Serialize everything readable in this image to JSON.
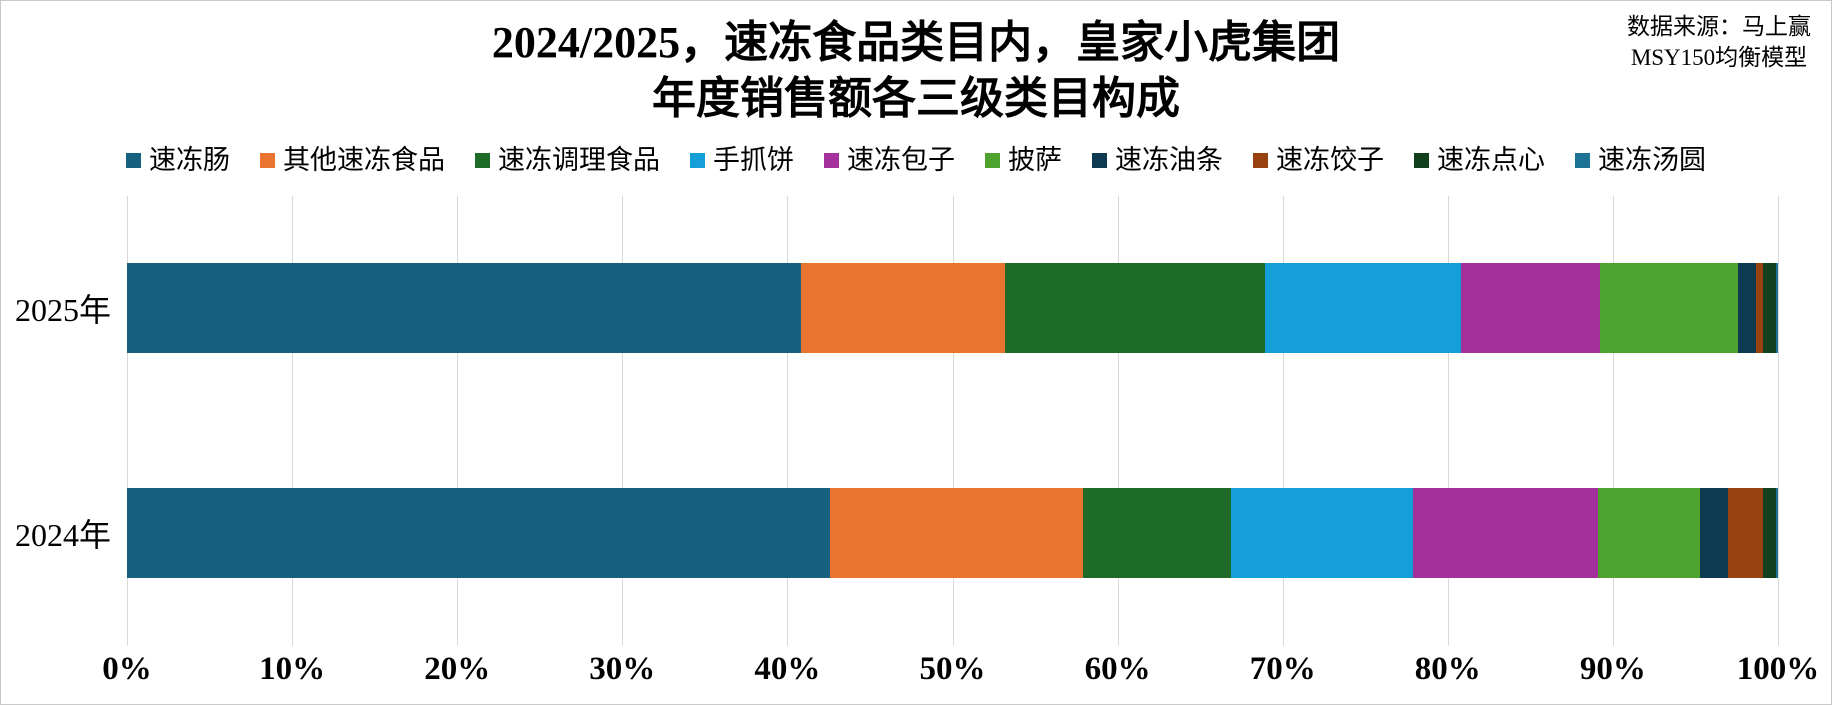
{
  "title": {
    "line1": "2024/2025，速冻食品类目内，皇家小虎集团",
    "line2": "年度销售额各三级类目构成"
  },
  "source": {
    "line1": "数据来源：马上赢",
    "line2": "MSY150均衡模型"
  },
  "chart_data": {
    "type": "bar",
    "orientation": "horizontal",
    "stacked": true,
    "units": "percent",
    "title": "2024/2025，速冻食品类目内，皇家小虎集团年度销售额各三级类目构成",
    "categories": [
      "2025年",
      "2024年"
    ],
    "x_axis": {
      "min": 0,
      "max": 100,
      "tick_step": 10,
      "ticks": [
        "0%",
        "10%",
        "20%",
        "30%",
        "40%",
        "50%",
        "60%",
        "70%",
        "80%",
        "90%",
        "100%"
      ]
    },
    "grid": true,
    "legend_position": "top",
    "series": [
      {
        "name": "速冻肠",
        "color": "#16617f",
        "values": [
          40.8,
          42.6
        ]
      },
      {
        "name": "其他速冻食品",
        "color": "#e8742f",
        "values": [
          12.4,
          15.3
        ]
      },
      {
        "name": "速冻调理食品",
        "color": "#1d6b27",
        "values": [
          15.7,
          9.0
        ]
      },
      {
        "name": "手抓饼",
        "color": "#149fd8",
        "values": [
          11.9,
          11.0
        ]
      },
      {
        "name": "速冻包子",
        "color": "#a3309b",
        "values": [
          8.4,
          11.2
        ]
      },
      {
        "name": "披萨",
        "color": "#4da32d",
        "values": [
          8.4,
          6.2
        ]
      },
      {
        "name": "速冻油条",
        "color": "#0d3a50",
        "values": [
          1.1,
          1.7
        ]
      },
      {
        "name": "速冻饺子",
        "color": "#98430f",
        "values": [
          0.4,
          2.1
        ]
      },
      {
        "name": "速冻点心",
        "color": "#123f1c",
        "values": [
          0.8,
          0.8
        ]
      },
      {
        "name": "速冻汤圆",
        "color": "#1d7396",
        "values": [
          0.1,
          0.1
        ]
      }
    ]
  }
}
